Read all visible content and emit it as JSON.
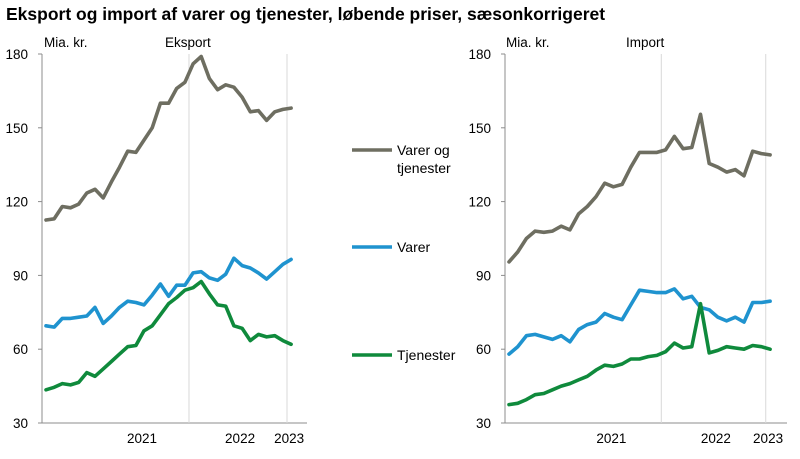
{
  "title": "Eksport og import af varer og tjenester, løbende priser, sæsonkorrigeret",
  "colors": {
    "varer_og_tjenester": "#6e6e61",
    "varer": "#1f93cf",
    "tjenester": "#0f8a3c",
    "grid": "#d9d9d9",
    "axis": "#8c8c8c"
  },
  "legend": [
    {
      "key": "varer_og_tjenester",
      "lines": [
        "Varer og",
        "tjenester"
      ]
    },
    {
      "key": "varer",
      "lines": [
        "Varer"
      ]
    },
    {
      "key": "tjenester",
      "lines": [
        "Tjenester"
      ]
    }
  ],
  "chart_data": [
    {
      "type": "line",
      "title": "Eksport",
      "ylabel": "Mia. kr.",
      "ylim": [
        30,
        180
      ],
      "yticks": [
        30,
        60,
        90,
        120,
        150,
        180
      ],
      "xtick_labels": [
        "2021",
        "2022",
        "2023"
      ],
      "x_start": "2020-07",
      "x_end": "2023-06",
      "series": [
        {
          "name": "Varer og tjenester",
          "key": "varer_og_tjenester",
          "values": [
            112.5,
            113,
            118,
            117.5,
            119,
            123.5,
            125,
            121.5,
            128,
            134,
            140.5,
            140,
            145,
            150,
            160,
            160,
            166,
            168.5,
            176,
            179,
            170,
            165.5,
            167.5,
            166.5,
            162.5,
            156.5,
            157,
            153,
            156.5,
            157.5,
            158
          ]
        },
        {
          "name": "Varer",
          "key": "varer",
          "values": [
            69.5,
            69,
            72.5,
            72.5,
            73,
            73.5,
            77,
            70.5,
            73.5,
            77,
            79.5,
            79,
            78,
            82,
            86.5,
            81.5,
            86,
            86,
            91,
            91.5,
            89,
            88,
            90.5,
            97,
            94,
            93,
            91,
            88.5,
            91.5,
            94.5,
            96.5
          ]
        },
        {
          "name": "Tjenester",
          "key": "tjenester",
          "values": [
            43.5,
            44.5,
            46,
            45.5,
            46.5,
            50.5,
            49,
            52,
            55,
            58,
            61,
            61.5,
            67.5,
            69.5,
            74,
            78.5,
            81,
            84,
            85,
            87.5,
            82.5,
            78,
            77.5,
            69.5,
            68.5,
            63.5,
            66,
            65,
            65.5,
            63.5,
            62
          ]
        }
      ]
    },
    {
      "type": "line",
      "title": "Import",
      "ylabel": "Mia. kr.",
      "ylim": [
        30,
        180
      ],
      "yticks": [
        30,
        60,
        90,
        120,
        150,
        180
      ],
      "xtick_labels": [
        "2021",
        "2022",
        "2023"
      ],
      "x_start": "2020-07",
      "x_end": "2023-06",
      "series": [
        {
          "name": "Varer og tjenester",
          "key": "varer_og_tjenester",
          "values": [
            95.5,
            99.5,
            105,
            108,
            107.5,
            108,
            110,
            108.5,
            115,
            118,
            122,
            127.5,
            126,
            127,
            134,
            140,
            140,
            140,
            141,
            146.5,
            141.5,
            142,
            155.5,
            135.5,
            134,
            132,
            133,
            130.5,
            140.5,
            139.5,
            139
          ]
        },
        {
          "name": "Varer",
          "key": "varer",
          "values": [
            58,
            61,
            65.5,
            66,
            65,
            64,
            65.5,
            63,
            68,
            70,
            71,
            74.5,
            73,
            72,
            78,
            84,
            83.5,
            83,
            83,
            84.5,
            80.5,
            81.5,
            77,
            76,
            73,
            71.5,
            73,
            71,
            79,
            79,
            79.5
          ]
        },
        {
          "name": "Tjenester",
          "key": "tjenester",
          "values": [
            37.5,
            38,
            39.5,
            41.5,
            42,
            43.5,
            45,
            46,
            47.5,
            49,
            51.5,
            53.5,
            53,
            54,
            56,
            56,
            57,
            57.5,
            59,
            62.5,
            60.5,
            61,
            78.5,
            58.5,
            59.5,
            61,
            60.5,
            60,
            61.5,
            61,
            60
          ]
        }
      ]
    }
  ]
}
